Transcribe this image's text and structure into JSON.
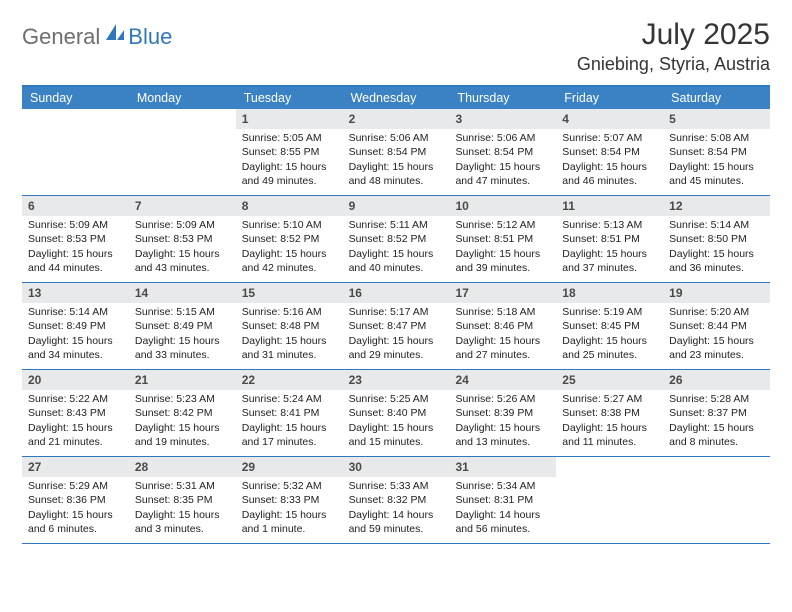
{
  "logo": {
    "part1": "General",
    "part2": "Blue"
  },
  "title": "July 2025",
  "location": "Gniebing, Styria, Austria",
  "colors": {
    "accent": "#3a82c4",
    "border": "#2f78bd",
    "daybg": "#e8e9ea",
    "logo_gray": "#6e6e6e",
    "logo_blue": "#2f78bd"
  },
  "typography": {
    "title_fontsize": 30,
    "location_fontsize": 18,
    "body_fontsize": 10.5
  },
  "weekdays": [
    "Sunday",
    "Monday",
    "Tuesday",
    "Wednesday",
    "Thursday",
    "Friday",
    "Saturday"
  ],
  "weeks": [
    [
      null,
      null,
      {
        "n": "1",
        "sr": "Sunrise: 5:05 AM",
        "ss": "Sunset: 8:55 PM",
        "d1": "Daylight: 15 hours",
        "d2": "and 49 minutes."
      },
      {
        "n": "2",
        "sr": "Sunrise: 5:06 AM",
        "ss": "Sunset: 8:54 PM",
        "d1": "Daylight: 15 hours",
        "d2": "and 48 minutes."
      },
      {
        "n": "3",
        "sr": "Sunrise: 5:06 AM",
        "ss": "Sunset: 8:54 PM",
        "d1": "Daylight: 15 hours",
        "d2": "and 47 minutes."
      },
      {
        "n": "4",
        "sr": "Sunrise: 5:07 AM",
        "ss": "Sunset: 8:54 PM",
        "d1": "Daylight: 15 hours",
        "d2": "and 46 minutes."
      },
      {
        "n": "5",
        "sr": "Sunrise: 5:08 AM",
        "ss": "Sunset: 8:54 PM",
        "d1": "Daylight: 15 hours",
        "d2": "and 45 minutes."
      }
    ],
    [
      {
        "n": "6",
        "sr": "Sunrise: 5:09 AM",
        "ss": "Sunset: 8:53 PM",
        "d1": "Daylight: 15 hours",
        "d2": "and 44 minutes."
      },
      {
        "n": "7",
        "sr": "Sunrise: 5:09 AM",
        "ss": "Sunset: 8:53 PM",
        "d1": "Daylight: 15 hours",
        "d2": "and 43 minutes."
      },
      {
        "n": "8",
        "sr": "Sunrise: 5:10 AM",
        "ss": "Sunset: 8:52 PM",
        "d1": "Daylight: 15 hours",
        "d2": "and 42 minutes."
      },
      {
        "n": "9",
        "sr": "Sunrise: 5:11 AM",
        "ss": "Sunset: 8:52 PM",
        "d1": "Daylight: 15 hours",
        "d2": "and 40 minutes."
      },
      {
        "n": "10",
        "sr": "Sunrise: 5:12 AM",
        "ss": "Sunset: 8:51 PM",
        "d1": "Daylight: 15 hours",
        "d2": "and 39 minutes."
      },
      {
        "n": "11",
        "sr": "Sunrise: 5:13 AM",
        "ss": "Sunset: 8:51 PM",
        "d1": "Daylight: 15 hours",
        "d2": "and 37 minutes."
      },
      {
        "n": "12",
        "sr": "Sunrise: 5:14 AM",
        "ss": "Sunset: 8:50 PM",
        "d1": "Daylight: 15 hours",
        "d2": "and 36 minutes."
      }
    ],
    [
      {
        "n": "13",
        "sr": "Sunrise: 5:14 AM",
        "ss": "Sunset: 8:49 PM",
        "d1": "Daylight: 15 hours",
        "d2": "and 34 minutes."
      },
      {
        "n": "14",
        "sr": "Sunrise: 5:15 AM",
        "ss": "Sunset: 8:49 PM",
        "d1": "Daylight: 15 hours",
        "d2": "and 33 minutes."
      },
      {
        "n": "15",
        "sr": "Sunrise: 5:16 AM",
        "ss": "Sunset: 8:48 PM",
        "d1": "Daylight: 15 hours",
        "d2": "and 31 minutes."
      },
      {
        "n": "16",
        "sr": "Sunrise: 5:17 AM",
        "ss": "Sunset: 8:47 PM",
        "d1": "Daylight: 15 hours",
        "d2": "and 29 minutes."
      },
      {
        "n": "17",
        "sr": "Sunrise: 5:18 AM",
        "ss": "Sunset: 8:46 PM",
        "d1": "Daylight: 15 hours",
        "d2": "and 27 minutes."
      },
      {
        "n": "18",
        "sr": "Sunrise: 5:19 AM",
        "ss": "Sunset: 8:45 PM",
        "d1": "Daylight: 15 hours",
        "d2": "and 25 minutes."
      },
      {
        "n": "19",
        "sr": "Sunrise: 5:20 AM",
        "ss": "Sunset: 8:44 PM",
        "d1": "Daylight: 15 hours",
        "d2": "and 23 minutes."
      }
    ],
    [
      {
        "n": "20",
        "sr": "Sunrise: 5:22 AM",
        "ss": "Sunset: 8:43 PM",
        "d1": "Daylight: 15 hours",
        "d2": "and 21 minutes."
      },
      {
        "n": "21",
        "sr": "Sunrise: 5:23 AM",
        "ss": "Sunset: 8:42 PM",
        "d1": "Daylight: 15 hours",
        "d2": "and 19 minutes."
      },
      {
        "n": "22",
        "sr": "Sunrise: 5:24 AM",
        "ss": "Sunset: 8:41 PM",
        "d1": "Daylight: 15 hours",
        "d2": "and 17 minutes."
      },
      {
        "n": "23",
        "sr": "Sunrise: 5:25 AM",
        "ss": "Sunset: 8:40 PM",
        "d1": "Daylight: 15 hours",
        "d2": "and 15 minutes."
      },
      {
        "n": "24",
        "sr": "Sunrise: 5:26 AM",
        "ss": "Sunset: 8:39 PM",
        "d1": "Daylight: 15 hours",
        "d2": "and 13 minutes."
      },
      {
        "n": "25",
        "sr": "Sunrise: 5:27 AM",
        "ss": "Sunset: 8:38 PM",
        "d1": "Daylight: 15 hours",
        "d2": "and 11 minutes."
      },
      {
        "n": "26",
        "sr": "Sunrise: 5:28 AM",
        "ss": "Sunset: 8:37 PM",
        "d1": "Daylight: 15 hours",
        "d2": "and 8 minutes."
      }
    ],
    [
      {
        "n": "27",
        "sr": "Sunrise: 5:29 AM",
        "ss": "Sunset: 8:36 PM",
        "d1": "Daylight: 15 hours",
        "d2": "and 6 minutes."
      },
      {
        "n": "28",
        "sr": "Sunrise: 5:31 AM",
        "ss": "Sunset: 8:35 PM",
        "d1": "Daylight: 15 hours",
        "d2": "and 3 minutes."
      },
      {
        "n": "29",
        "sr": "Sunrise: 5:32 AM",
        "ss": "Sunset: 8:33 PM",
        "d1": "Daylight: 15 hours",
        "d2": "and 1 minute."
      },
      {
        "n": "30",
        "sr": "Sunrise: 5:33 AM",
        "ss": "Sunset: 8:32 PM",
        "d1": "Daylight: 14 hours",
        "d2": "and 59 minutes."
      },
      {
        "n": "31",
        "sr": "Sunrise: 5:34 AM",
        "ss": "Sunset: 8:31 PM",
        "d1": "Daylight: 14 hours",
        "d2": "and 56 minutes."
      },
      null,
      null
    ]
  ]
}
